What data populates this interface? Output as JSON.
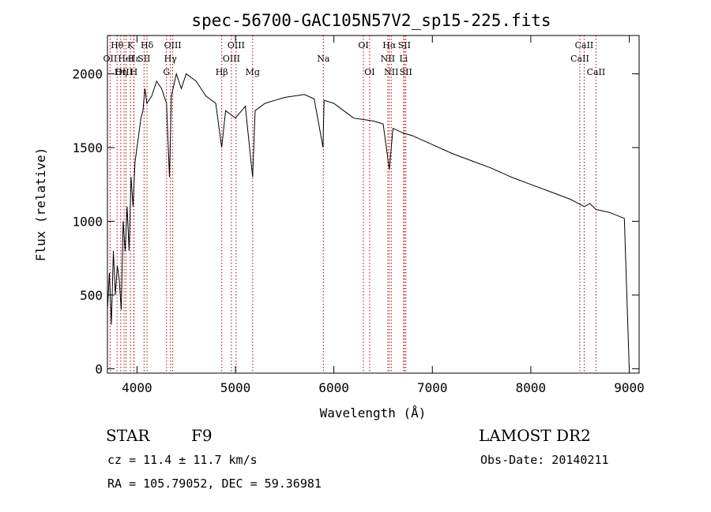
{
  "chart_data": {
    "type": "line",
    "title": "spec-56700-GAC105N57V2_sp15-225.fits",
    "xlabel": "Wavelength (Å)",
    "ylabel": "Flux (relative)",
    "xlim": [
      3700,
      9100
    ],
    "ylim": [
      -30,
      2260
    ],
    "xticks": [
      4000,
      5000,
      6000,
      7000,
      8000,
      9000
    ],
    "yticks": [
      0,
      500,
      1000,
      1500,
      2000
    ],
    "series": [
      {
        "x": [
          3700,
          3720,
          3740,
          3760,
          3780,
          3800,
          3820,
          3840,
          3860,
          3880,
          3900,
          3920,
          3940,
          3960,
          3980,
          4000,
          4020,
          4040,
          4060,
          4080,
          4100,
          4150,
          4200,
          4250,
          4300,
          4330,
          4350,
          4400,
          4450,
          4500,
          4600,
          4700,
          4800,
          4860,
          4900,
          5000,
          5100,
          5175,
          5200,
          5300,
          5400,
          5500,
          5600,
          5700,
          5800,
          5890,
          5900,
          6000,
          6100,
          6200,
          6300,
          6400,
          6500,
          6563,
          6600,
          6700,
          6800,
          6900,
          7000,
          7200,
          7400,
          7600,
          7800,
          8000,
          8200,
          8400,
          8542,
          8600,
          8662,
          8800,
          8950,
          9000
        ],
        "y": [
          400,
          650,
          300,
          800,
          500,
          700,
          600,
          400,
          1000,
          800,
          1100,
          800,
          1300,
          1100,
          1400,
          1500,
          1600,
          1700,
          1750,
          1900,
          1800,
          1850,
          1950,
          1900,
          1800,
          1300,
          1850,
          2000,
          1900,
          2000,
          1950,
          1850,
          1800,
          1500,
          1750,
          1700,
          1780,
          1300,
          1750,
          1800,
          1820,
          1840,
          1850,
          1860,
          1830,
          1500,
          1820,
          1800,
          1750,
          1700,
          1690,
          1680,
          1660,
          1350,
          1630,
          1600,
          1580,
          1550,
          1520,
          1460,
          1410,
          1360,
          1300,
          1250,
          1200,
          1150,
          1100,
          1120,
          1080,
          1060,
          1020,
          0
        ]
      }
    ],
    "line_markers": [
      {
        "label": "Hθ",
        "wl": 3798,
        "row": 1
      },
      {
        "label": "OII",
        "wl": 3727,
        "row": 2
      },
      {
        "label": "OIII",
        "wl": 3869,
        "row": 3
      },
      {
        "label": "K",
        "wl": 3934,
        "row": 1
      },
      {
        "label": "Hε",
        "wl": 3970,
        "row": 2
      },
      {
        "label": "Hη",
        "wl": 3835,
        "row": 3
      },
      {
        "label": "H",
        "wl": 3968,
        "row": 3
      },
      {
        "label": "HeI",
        "wl": 3889,
        "row": 2
      },
      {
        "label": "SII",
        "wl": 4072,
        "row": 2
      },
      {
        "label": "Hδ",
        "wl": 4102,
        "row": 1
      },
      {
        "label": "G",
        "wl": 4300,
        "row": 3
      },
      {
        "label": "OIII",
        "wl": 4363,
        "row": 1
      },
      {
        "label": "Hγ",
        "wl": 4340,
        "row": 2
      },
      {
        "label": "Hβ",
        "wl": 4861,
        "row": 3
      },
      {
        "label": "OIII",
        "wl": 4959,
        "row": 2
      },
      {
        "label": "OIII",
        "wl": 5007,
        "row": 1
      },
      {
        "label": "Mg",
        "wl": 5175,
        "row": 3
      },
      {
        "label": "Na",
        "wl": 5893,
        "row": 2
      },
      {
        "label": "OI",
        "wl": 6300,
        "row": 1
      },
      {
        "label": "OI",
        "wl": 6363,
        "row": 3
      },
      {
        "label": "Hα",
        "wl": 6563,
        "row": 1
      },
      {
        "label": "NII",
        "wl": 6548,
        "row": 2
      },
      {
        "label": "NII",
        "wl": 6583,
        "row": 3
      },
      {
        "label": "SII",
        "wl": 6716,
        "row": 1
      },
      {
        "label": "Li",
        "wl": 6708,
        "row": 2
      },
      {
        "label": "SII",
        "wl": 6731,
        "row": 3
      },
      {
        "label": "CaII",
        "wl": 8542,
        "row": 1
      },
      {
        "label": "CaII",
        "wl": 8498,
        "row": 2
      },
      {
        "label": "CaII",
        "wl": 8662,
        "row": 3
      }
    ]
  },
  "info": {
    "class_label": "STAR",
    "subclass": "F9",
    "survey": "LAMOST DR2",
    "cz": "cz = 11.4 ± 11.7 km/s",
    "obs_date": "Obs-Date: 20140211",
    "radec": "RA = 105.79052, DEC =  59.36981"
  }
}
